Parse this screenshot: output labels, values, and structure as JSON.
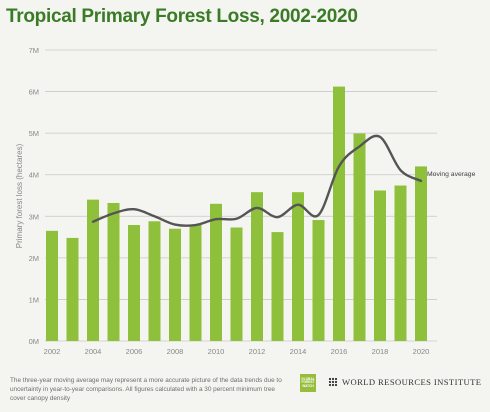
{
  "title": "Tropical Primary Forest Loss, 2002-2020",
  "footnote": "The three-year moving average may represent a more accurate picture of the data trends due to uncertainty in year-to-year comparisons. All figures calculated with a 30 percent minimum tree cover canopy density",
  "logos": {
    "gfw_lines": [
      "GLOBAL",
      "FOREST",
      "WATCH"
    ],
    "wri_name": "WORLD RESOURCES INSTITUTE"
  },
  "colors": {
    "title": "#3a7b26",
    "bar": "#8fc03b",
    "moving_average": "#555555",
    "grid": "#c8c8c8",
    "axis_text": "#888888"
  },
  "chart_data": {
    "type": "bar",
    "title": "Tropical Primary Forest Loss, 2002-2020",
    "xlabel": "",
    "ylabel": "Primary forest loss (hectares)",
    "ylim": [
      0,
      7000000
    ],
    "y_ticks": [
      {
        "value": 0,
        "label": "0M"
      },
      {
        "value": 1000000,
        "label": "1M"
      },
      {
        "value": 2000000,
        "label": "2M"
      },
      {
        "value": 3000000,
        "label": "3M"
      },
      {
        "value": 4000000,
        "label": "4M"
      },
      {
        "value": 5000000,
        "label": "5M"
      },
      {
        "value": 6000000,
        "label": "6M"
      },
      {
        "value": 7000000,
        "label": "7M"
      }
    ],
    "x_ticks": [
      2002,
      2004,
      2006,
      2008,
      2010,
      2012,
      2014,
      2016,
      2018,
      2020
    ],
    "grid": true,
    "categories": [
      2002,
      2003,
      2004,
      2005,
      2006,
      2007,
      2008,
      2009,
      2010,
      2011,
      2012,
      2013,
      2014,
      2015,
      2016,
      2017,
      2018,
      2019,
      2020
    ],
    "values": [
      2650000,
      2480000,
      3400000,
      3320000,
      2790000,
      2880000,
      2700000,
      2790000,
      3300000,
      2730000,
      3580000,
      2620000,
      3580000,
      2910000,
      6120000,
      4990000,
      3620000,
      3740000,
      4200000
    ],
    "series": [
      {
        "name": "Moving average",
        "type": "line",
        "x": [
          2004,
          2005,
          2006,
          2007,
          2008,
          2009,
          2010,
          2011,
          2012,
          2013,
          2014,
          2015,
          2016,
          2017,
          2018,
          2019,
          2020
        ],
        "values": [
          2870000,
          3070000,
          3170000,
          3000000,
          2800000,
          2790000,
          2930000,
          2940000,
          3200000,
          2980000,
          3280000,
          3030000,
          4200000,
          4680000,
          4910000,
          4110000,
          3850000
        ]
      }
    ]
  }
}
